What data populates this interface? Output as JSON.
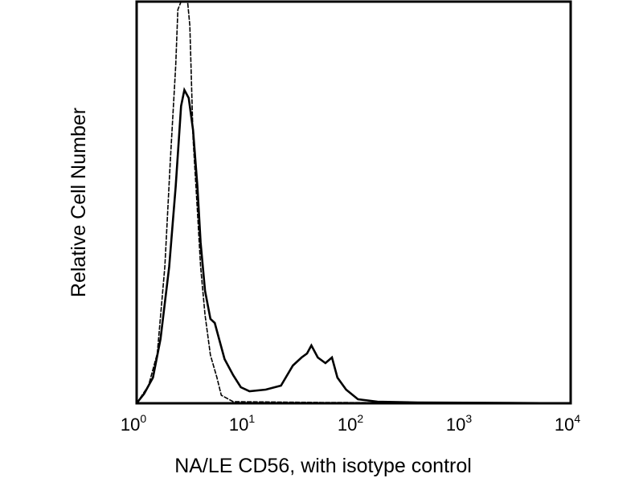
{
  "chart_data": {
    "type": "line",
    "title": "",
    "xlabel": "NA/LE CD56, with isotype control",
    "ylabel": "Relative Cell Number",
    "x_scale": "log10",
    "xlim_log10": [
      0,
      4
    ],
    "ylim": [
      0,
      100
    ],
    "grid": false,
    "x_ticks": [
      {
        "base": "10",
        "exp": "0"
      },
      {
        "base": "10",
        "exp": "1"
      },
      {
        "base": "10",
        "exp": "2"
      },
      {
        "base": "10",
        "exp": "3"
      },
      {
        "base": "10",
        "exp": "4"
      }
    ],
    "series": [
      {
        "name": "NA/LE CD56",
        "style": "thick",
        "color": "#000000",
        "x_log10": [
          0,
          0.07,
          0.15,
          0.22,
          0.3,
          0.36,
          0.41,
          0.44,
          0.48,
          0.52,
          0.56,
          0.59,
          0.63,
          0.68,
          0.72,
          0.76,
          0.81,
          0.89,
          0.96,
          1.04,
          1.19,
          1.33,
          1.44,
          1.52,
          1.57,
          1.61,
          1.67,
          1.74,
          1.8,
          1.85,
          1.93,
          2.04,
          2.22,
          2.59,
          4
        ],
        "y": [
          0,
          2.4,
          6.4,
          16,
          34,
          54,
          74,
          78,
          76,
          68,
          54,
          40,
          28,
          21,
          20,
          16,
          11,
          7,
          4,
          3,
          3.4,
          4.4,
          9.4,
          11.4,
          12.4,
          14.4,
          11.4,
          10,
          11.4,
          6.4,
          3.4,
          1,
          0.4,
          0.2,
          0
        ]
      },
      {
        "name": "isotype control",
        "style": "thin",
        "color": "#000000",
        "x_log10": [
          0,
          0.11,
          0.19,
          0.26,
          0.31,
          0.36,
          0.38,
          0.41,
          0.47,
          0.49,
          0.52,
          0.56,
          0.59,
          0.63,
          0.68,
          0.74,
          0.78,
          0.89,
          1.7,
          4
        ],
        "y": [
          0,
          4.4,
          12.4,
          34,
          60,
          84,
          98,
          100,
          100,
          94,
          66,
          48,
          34,
          22,
          12,
          6.4,
          2,
          0.4,
          0.2,
          0
        ]
      }
    ]
  }
}
